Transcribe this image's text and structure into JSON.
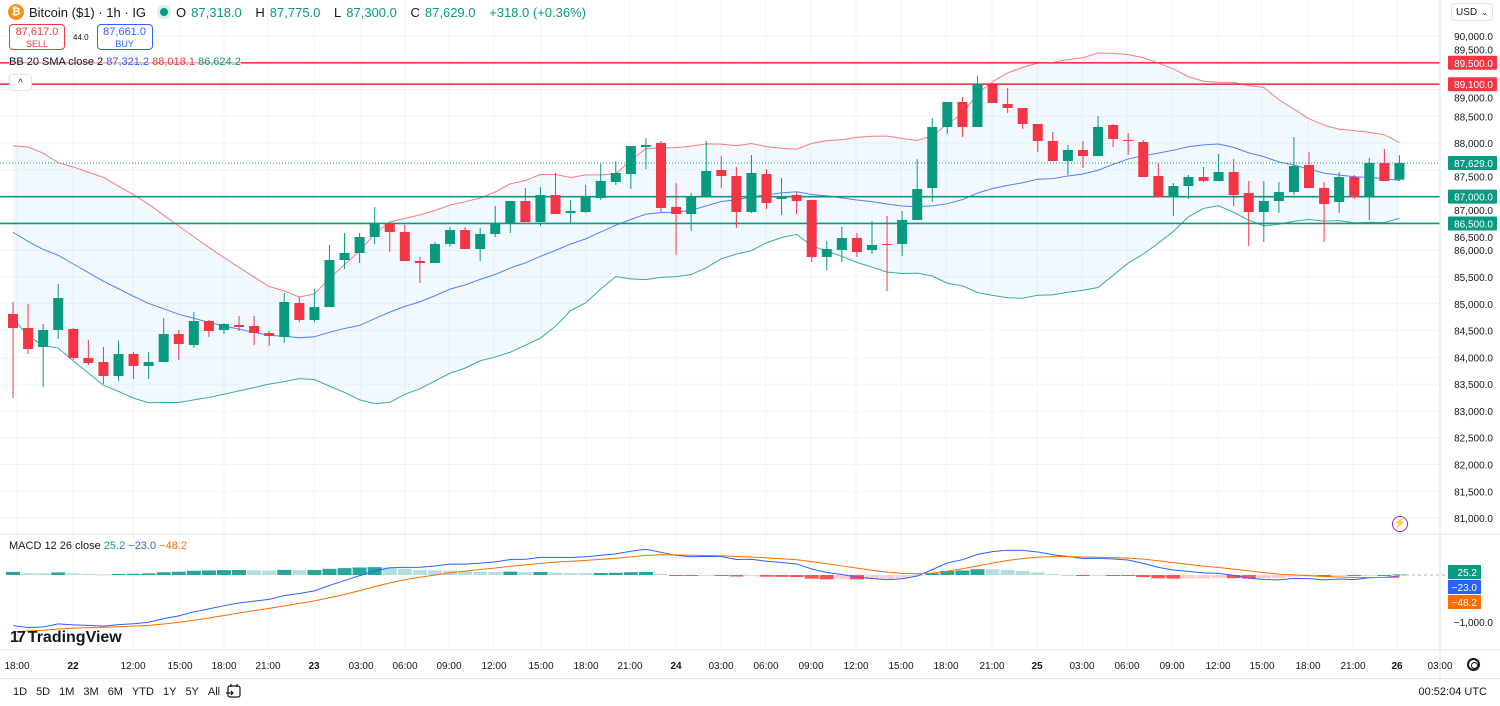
{
  "header": {
    "symbol": "Bitcoin ($1) · 1h · IG",
    "icon": "bitcoin-icon",
    "ohlc": {
      "o_label": "O",
      "o": "87,318.0",
      "h_label": "H",
      "h": "87,775.0",
      "l_label": "L",
      "l": "87,300.0",
      "c_label": "C",
      "c": "87,629.0",
      "change": "+318.0 (+0.36%)"
    },
    "sell": {
      "price": "87,617.0",
      "label": "SELL"
    },
    "spread": "44.0",
    "buy": {
      "price": "87,661.0",
      "label": "BUY"
    },
    "bb": {
      "label": "BB 20 SMA close 2",
      "basis": "87,321.2",
      "upper": "88,018.1",
      "lower": "86,624.2"
    },
    "collapse": "^",
    "currency": "USD"
  },
  "macd_legend": {
    "label": "MACD 12 26 close",
    "hist": "25.2",
    "macd": "−23.0",
    "signal": "−48.2"
  },
  "macd_axis": {
    "hist": "25.2",
    "macd": "−23.0",
    "signal": "−48.2",
    "tick": "−1,000.0"
  },
  "logo": "TradingView",
  "bottom": {
    "ranges": [
      "1D",
      "5D",
      "1M",
      "3M",
      "6M",
      "YTD",
      "1Y",
      "5Y",
      "All"
    ],
    "clock": "00:52:04 UTC"
  },
  "colors": {
    "up": "#089981",
    "down": "#f23645",
    "bb_upper": "#f77c80",
    "bb_basis": "#2962ff",
    "bb_lower": "#089981",
    "macd": "#2962ff",
    "signal": "#ff6d00",
    "accent": "#2962ff"
  },
  "chart_data": {
    "type": "candlestick",
    "interval": "1h",
    "ylim": [
      80800,
      90400
    ],
    "price_ticks": [
      "90,000.0",
      "89,500.0",
      "89,000.0",
      "88,500.0",
      "88,000.0",
      "87,500.0",
      "87,000.0",
      "86,500.0",
      "86,000.0",
      "85,500.0",
      "85,000.0",
      "84,500.0",
      "84,000.0",
      "83,500.0",
      "83,000.0",
      "82,500.0",
      "82,000.0",
      "81,500.0",
      "81,000.0"
    ],
    "price_tick_values": [
      90000,
      89500,
      89000,
      88500,
      88000,
      87500,
      87000,
      86500,
      86000,
      85500,
      85000,
      84500,
      84000,
      83500,
      83000,
      82500,
      82000,
      81500,
      81000
    ],
    "time_ticks": [
      "18:00",
      "22",
      "12:00",
      "15:00",
      "18:00",
      "21:00",
      "23",
      "03:00",
      "06:00",
      "09:00",
      "12:00",
      "15:00",
      "18:00",
      "21:00",
      "24",
      "03:00",
      "06:00",
      "09:00",
      "12:00",
      "15:00",
      "18:00",
      "21:00",
      "25",
      "03:00",
      "06:00",
      "09:00",
      "12:00",
      "15:00",
      "18:00",
      "21:00",
      "26",
      "03:00"
    ],
    "horizontal_lines": [
      {
        "price": 89500,
        "label": "89,500.0",
        "color": "#f23645"
      },
      {
        "price": 89100,
        "label": "89,100.0",
        "color": "#f23645"
      },
      {
        "price": 87000,
        "label": "87,000.0",
        "color": "#089981"
      },
      {
        "price": 86500,
        "label": "86,500.0",
        "color": "#089981"
      }
    ],
    "last_price": {
      "price": 87629,
      "label": "87,629.0"
    },
    "candles_ohlc": [
      [
        84810,
        85034,
        83241,
        84548
      ],
      [
        84548,
        84996,
        84063,
        84156
      ],
      [
        84194,
        84623,
        83447,
        84511
      ],
      [
        84511,
        85370,
        84343,
        85108
      ],
      [
        84530,
        84548,
        83951,
        83988
      ],
      [
        83988,
        84324,
        83857,
        83895
      ],
      [
        83913,
        84194,
        83503,
        83652
      ],
      [
        83652,
        84306,
        83559,
        84063
      ],
      [
        84063,
        84100,
        83596,
        83839
      ],
      [
        83839,
        84100,
        83596,
        83913
      ],
      [
        83913,
        84735,
        83913,
        84436
      ],
      [
        84436,
        84511,
        83951,
        84250
      ],
      [
        84231,
        84847,
        84175,
        84679
      ],
      [
        84679,
        84698,
        84380,
        84492
      ],
      [
        84511,
        84642,
        84436,
        84623
      ],
      [
        84604,
        84772,
        84492,
        84567
      ],
      [
        84586,
        84772,
        84231,
        84455
      ],
      [
        84455,
        84492,
        84212,
        84399
      ],
      [
        84380,
        85202,
        84268,
        85034
      ],
      [
        85015,
        85127,
        84660,
        84698
      ],
      [
        84698,
        85276,
        84660,
        84939
      ],
      [
        84939,
        86098,
        84939,
        85818
      ],
      [
        85818,
        86322,
        85650,
        85948
      ],
      [
        85948,
        86322,
        85762,
        86247
      ],
      [
        86247,
        86807,
        86117,
        86490
      ],
      [
        86490,
        86490,
        85967,
        86341
      ],
      [
        86341,
        86471,
        85799,
        85799
      ],
      [
        85799,
        85874,
        85388,
        85762
      ],
      [
        85762,
        86154,
        85762,
        86117
      ],
      [
        86117,
        86434,
        86061,
        86378
      ],
      [
        86378,
        86434,
        86023,
        86023
      ],
      [
        86023,
        86415,
        85799,
        86303
      ],
      [
        86303,
        86826,
        86247,
        86509
      ],
      [
        86509,
        86919,
        86322,
        86919
      ],
      [
        86919,
        87162,
        86527,
        86527
      ],
      [
        86527,
        87181,
        86453,
        87031
      ],
      [
        87031,
        87442,
        86677,
        86677
      ],
      [
        86695,
        86938,
        86509,
        86733
      ],
      [
        86714,
        87218,
        86695,
        86994
      ],
      [
        86975,
        87610,
        86938,
        87293
      ],
      [
        87274,
        87666,
        87218,
        87442
      ],
      [
        87423,
        87946,
        87143,
        87946
      ],
      [
        87928,
        88096,
        87517,
        87965
      ],
      [
        88002,
        88040,
        86714,
        86789
      ],
      [
        86807,
        87255,
        85911,
        86677
      ],
      [
        86677,
        87069,
        86359,
        87013
      ],
      [
        86994,
        88040,
        86994,
        87479
      ],
      [
        87498,
        87759,
        87162,
        87386
      ],
      [
        87386,
        87554,
        86415,
        86714
      ],
      [
        86714,
        87778,
        86695,
        87442
      ],
      [
        87423,
        87517,
        86770,
        86882
      ],
      [
        86957,
        87349,
        86658,
        87013
      ],
      [
        87031,
        87087,
        86677,
        86919
      ],
      [
        86938,
        86938,
        85780,
        85874
      ],
      [
        85874,
        86173,
        85631,
        86023
      ],
      [
        86005,
        86434,
        85780,
        86229
      ],
      [
        86229,
        86322,
        85874,
        85967
      ],
      [
        86005,
        86546,
        85930,
        86098
      ],
      [
        86117,
        86639,
        85239,
        86098
      ],
      [
        86117,
        86733,
        85892,
        86565
      ],
      [
        86565,
        87703,
        86565,
        87143
      ],
      [
        87162,
        88469,
        86901,
        88301
      ],
      [
        88301,
        88768,
        88170,
        88768
      ],
      [
        88768,
        88861,
        88114,
        88301
      ],
      [
        88301,
        89253,
        88301,
        89104
      ],
      [
        89104,
        89122,
        88749,
        88749
      ],
      [
        88730,
        89029,
        88562,
        88656
      ],
      [
        88656,
        88656,
        88264,
        88357
      ],
      [
        88357,
        88357,
        87834,
        88040
      ],
      [
        88040,
        88208,
        87666,
        87666
      ],
      [
        87666,
        87965,
        87405,
        87872
      ],
      [
        87872,
        88040,
        87535,
        87759
      ],
      [
        87759,
        88506,
        87759,
        88301
      ],
      [
        88338,
        88357,
        87928,
        88077
      ],
      [
        88058,
        88189,
        87778,
        88040
      ],
      [
        88021,
        88058,
        87367,
        87367
      ],
      [
        87386,
        87629,
        86994,
        86994
      ],
      [
        86994,
        87255,
        86639,
        87199
      ],
      [
        87199,
        87405,
        86957,
        87367
      ],
      [
        87367,
        87554,
        87274,
        87293
      ],
      [
        87293,
        87797,
        87293,
        87461
      ],
      [
        87461,
        87703,
        86826,
        87031
      ],
      [
        87069,
        87293,
        86079,
        86714
      ],
      [
        86714,
        87293,
        86154,
        86919
      ],
      [
        86919,
        87274,
        86695,
        87087
      ],
      [
        87087,
        88114,
        87031,
        87573
      ],
      [
        87591,
        87834,
        87162,
        87162
      ],
      [
        87162,
        87274,
        86154,
        86863
      ],
      [
        86901,
        87461,
        86695,
        87367
      ],
      [
        87367,
        87405,
        86957,
        86994
      ],
      [
        86994,
        87722,
        86565,
        87629
      ],
      [
        87629,
        87890,
        87293,
        87293
      ],
      [
        87318,
        87775,
        87300,
        87629
      ]
    ],
    "indicators": {
      "bollinger": {
        "length": 20,
        "source": "close",
        "mult": 2,
        "basis": 87321.2,
        "upper": 88018.1,
        "lower": 86624.2
      },
      "macd": {
        "fast": 12,
        "slow": 26,
        "source": "close",
        "hist": 25.2,
        "macd": -23.0,
        "signal": -48.2
      }
    }
  }
}
